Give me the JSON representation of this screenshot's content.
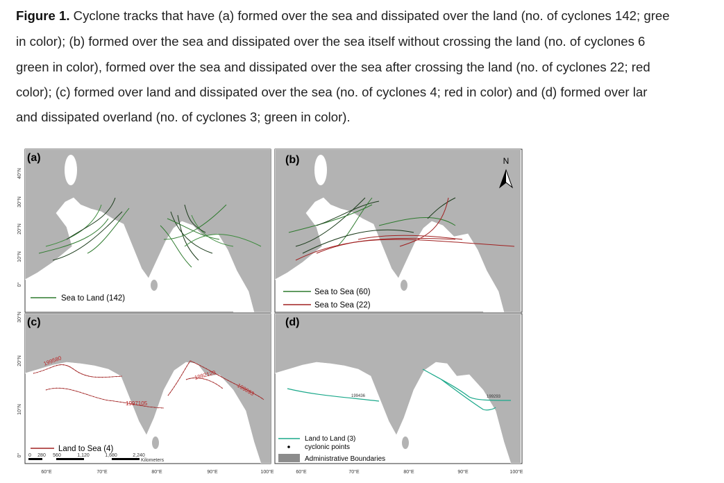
{
  "caption": {
    "label": "Figure 1.",
    "lines": [
      "Cyclone tracks that have (a) formed over the sea and dissipated over the land (no. of cyclones 142; gree",
      "in color); (b) formed over the sea and dissipated over the sea itself without crossing the land (no. of cyclones 6",
      "green in color), formed over the sea and dissipated over the sea after crossing the land (no. of cyclones 22; red",
      "color); (c) formed over land and dissipated over the sea (no. of cyclones 4; red in color) and (d) formed over lar",
      "and dissipated overland (no. of cyclones 3; green in color)."
    ]
  },
  "panels": [
    {
      "label": "(a)",
      "legend": [
        "Sea to Land (142)"
      ]
    },
    {
      "label": "(b)",
      "legend": [
        "Sea to Sea (60)",
        "Sea to Sea (22)"
      ]
    },
    {
      "label": "(c)",
      "legend": [
        "Land to Sea (4)"
      ],
      "track_ids": [
        "199580",
        "1992120",
        "199093",
        "1997105"
      ]
    },
    {
      "label": "(d)",
      "legend": [
        "Land to Land (3)",
        "cyclonic points",
        "Administrative Boundaries"
      ],
      "track_ids": [
        "199436",
        "199293"
      ]
    }
  ],
  "north": "N",
  "lat_top": [
    "40°N",
    "30°N",
    "20°N",
    "10°N",
    "0°"
  ],
  "lat_bottom": [
    "30°N",
    "20°N",
    "10°N",
    "0°"
  ],
  "lon_left": [
    "60°E",
    "70°E",
    "80°E",
    "90°E",
    "100°E"
  ],
  "lon_right": [
    "60°E",
    "70°E",
    "80°E",
    "90°E",
    "100°E"
  ],
  "scale_bar": {
    "ticks": [
      "0",
      "280",
      "560",
      "1,120",
      "1,680",
      "2,240"
    ],
    "unit": "Kilometers"
  }
}
